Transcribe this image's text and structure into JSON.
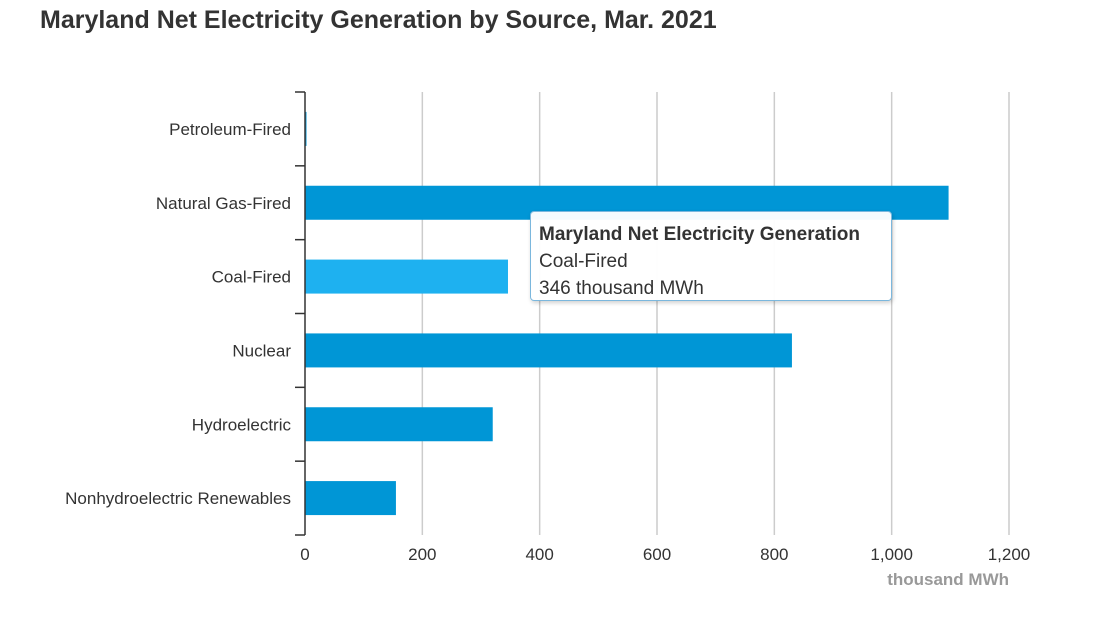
{
  "chart_data": {
    "type": "bar",
    "orientation": "horizontal",
    "title": "Maryland Net Electricity Generation by Source, Mar. 2021",
    "categories": [
      "Petroleum-Fired",
      "Natural Gas-Fired",
      "Coal-Fired",
      "Nuclear",
      "Hydroelectric",
      "Nonhydroelectric Renewables"
    ],
    "values": [
      2,
      1097,
      346,
      830,
      320,
      155
    ],
    "xlabel": "thousand MWh",
    "ylabel": "",
    "xlim": [
      0,
      1200
    ],
    "xticks": [
      0,
      200,
      400,
      600,
      800,
      1000,
      1200
    ],
    "xtick_labels": [
      "0",
      "200",
      "400",
      "600",
      "800",
      "1,000",
      "1,200"
    ],
    "grid": "vertical",
    "legend": "none",
    "highlighted_category": "Coal-Fired",
    "colors": {
      "bar": "#0096d6",
      "bar_highlight": "#1eb1f0",
      "grid": "#cccccc",
      "axis": "#333333",
      "text": "#333333",
      "axis_title": "#999999"
    }
  },
  "tooltip": {
    "title": "Maryland Net Electricity Generation",
    "category": "Coal-Fired",
    "value_text": "346 thousand MWh"
  }
}
